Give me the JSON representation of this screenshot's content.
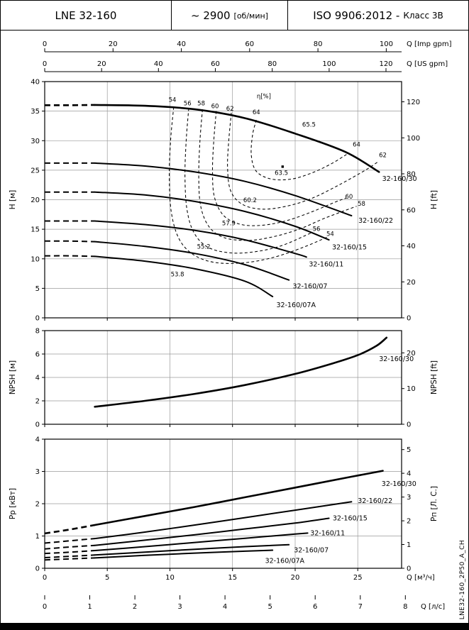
{
  "header": {
    "model": "LNE 32-160",
    "speed": "~ 2900",
    "speed_unit": "[об/мин]",
    "standard": "ISO 9906:2012 -",
    "standard_class": "Класс 3В"
  },
  "side_label": "LNE32-160_2P50_A_CH",
  "colors": {
    "curve": "#000000",
    "grid": "#9a9a9a",
    "background": "#ffffff"
  },
  "x_axis": {
    "max_m3h": 28.5,
    "top1_label": "Q [Imp gpm]",
    "top1_ticks": [
      0,
      20,
      40,
      60,
      80,
      100
    ],
    "top2_label": "Q [US gpm]",
    "top2_ticks": [
      0,
      20,
      40,
      60,
      80,
      100,
      120
    ],
    "bottom1_label": "Q [м³/ч]",
    "bottom1_ticks": [
      0,
      5,
      10,
      15,
      20,
      25
    ],
    "bottom2_label": "Q [л/с]",
    "bottom2_ticks": [
      0,
      1,
      2,
      3,
      4,
      5,
      6,
      7,
      8
    ]
  },
  "chart_data": [
    {
      "name": "head",
      "type": "line",
      "ylabel_left": "H [м]",
      "ylabel_right": "H [ft]",
      "ylim": [
        0,
        40
      ],
      "yticks_left": [
        0,
        5,
        10,
        15,
        20,
        25,
        30,
        35,
        40
      ],
      "yticks_right": [
        0,
        20,
        40,
        60,
        80,
        100,
        120
      ],
      "series": [
        {
          "label": "32-160/30",
          "dashed_points": [
            [
              0,
              36
            ],
            [
              2,
              36
            ],
            [
              4,
              36.05
            ]
          ],
          "points": [
            [
              4,
              36.05
            ],
            [
              8,
              35.9
            ],
            [
              12,
              35.3
            ],
            [
              16,
              33.8
            ],
            [
              20,
              31.2
            ],
            [
              24,
              28.1
            ],
            [
              26.7,
              24.7
            ]
          ],
          "label_at": [
            26.95,
            23.2
          ]
        },
        {
          "label": "32-160/22",
          "dashed_points": [
            [
              0,
              26.2
            ],
            [
              2,
              26.2
            ],
            [
              4,
              26.2
            ]
          ],
          "points": [
            [
              4,
              26.2
            ],
            [
              8,
              25.7
            ],
            [
              12,
              24.7
            ],
            [
              16,
              23.1
            ],
            [
              20,
              20.7
            ],
            [
              24.5,
              17.3
            ]
          ],
          "label_at": [
            25.05,
            16.1
          ]
        },
        {
          "label": "32-160/15",
          "dashed_points": [
            [
              0,
              21.3
            ],
            [
              2,
              21.3
            ],
            [
              4,
              21.3
            ]
          ],
          "points": [
            [
              4,
              21.3
            ],
            [
              8,
              20.8
            ],
            [
              12,
              19.7
            ],
            [
              16,
              18.0
            ],
            [
              20,
              15.5
            ],
            [
              22.7,
              13.2
            ]
          ],
          "label_at": [
            22.95,
            11.6
          ]
        },
        {
          "label": "32-160/11",
          "dashed_points": [
            [
              0,
              16.4
            ],
            [
              2,
              16.4
            ],
            [
              4,
              16.4
            ]
          ],
          "points": [
            [
              4,
              16.4
            ],
            [
              8,
              15.8
            ],
            [
              12,
              14.8
            ],
            [
              16,
              13.2
            ],
            [
              20,
              10.9
            ],
            [
              20.9,
              10.3
            ]
          ],
          "label_at": [
            21.1,
            8.7
          ]
        },
        {
          "label": "32-160/07",
          "dashed_points": [
            [
              0,
              13.0
            ],
            [
              2,
              13.0
            ],
            [
              4,
              12.9
            ]
          ],
          "points": [
            [
              4,
              12.9
            ],
            [
              8,
              12.1
            ],
            [
              12,
              10.9
            ],
            [
              16,
              9.0
            ],
            [
              19.5,
              6.4
            ]
          ],
          "label_at": [
            19.8,
            5.0
          ]
        },
        {
          "label": "32-160/07A",
          "dashed_points": [
            [
              0,
              10.5
            ],
            [
              2,
              10.5
            ],
            [
              4,
              10.4
            ]
          ],
          "points": [
            [
              4,
              10.4
            ],
            [
              8,
              9.6
            ],
            [
              12,
              8.3
            ],
            [
              16,
              6.2
            ],
            [
              18.2,
              3.6
            ]
          ],
          "label_at": [
            18.5,
            1.8
          ]
        }
      ],
      "contours": [
        {
          "value": 54,
          "points": [
            [
              10.3,
              35.7
            ],
            [
              10.05,
              30
            ],
            [
              9.95,
              24
            ],
            [
              10.1,
              18
            ],
            [
              10.7,
              13.5
            ],
            [
              11.8,
              10.8
            ],
            [
              13.5,
              9.4
            ],
            [
              15.8,
              9.3
            ],
            [
              18.2,
              10.2
            ],
            [
              20.6,
              11.9
            ],
            [
              22.6,
              13.7
            ]
          ]
        },
        {
          "value": 56,
          "points": [
            [
              11.5,
              35.5
            ],
            [
              11.3,
              30
            ],
            [
              11.2,
              24
            ],
            [
              11.35,
              18.5
            ],
            [
              11.9,
              14.5
            ],
            [
              13.0,
              12.0
            ],
            [
              14.8,
              11.0
            ],
            [
              16.8,
              11.2
            ],
            [
              18.9,
              12.2
            ],
            [
              21.3,
              14.4
            ]
          ]
        },
        {
          "value": 58,
          "points": [
            [
              12.6,
              35.3
            ],
            [
              12.4,
              30
            ],
            [
              12.3,
              24
            ],
            [
              12.45,
              19
            ],
            [
              13.1,
              15.5
            ],
            [
              14.3,
              13.6
            ],
            [
              16.2,
              13.1
            ],
            [
              18.2,
              13.7
            ],
            [
              20.3,
              15.0
            ],
            [
              22.4,
              16.9
            ],
            [
              24.9,
              18.9
            ]
          ]
        },
        {
          "value": 60,
          "points": [
            [
              13.7,
              35.0
            ],
            [
              13.5,
              30
            ],
            [
              13.4,
              25
            ],
            [
              13.55,
              20.5
            ],
            [
              14.3,
              17.3
            ],
            [
              15.7,
              15.8
            ],
            [
              17.5,
              15.7
            ],
            [
              19.4,
              16.5
            ],
            [
              21.4,
              18.0
            ],
            [
              23.2,
              19.6
            ],
            [
              24.1,
              20.3
            ]
          ]
        },
        {
          "value": 62,
          "points": [
            [
              14.9,
              34.7
            ],
            [
              14.7,
              30
            ],
            [
              14.6,
              25.5
            ],
            [
              14.85,
              21.5
            ],
            [
              15.8,
              19.2
            ],
            [
              17.4,
              18.4
            ],
            [
              19.3,
              18.9
            ],
            [
              21.3,
              20.2
            ],
            [
              23.5,
              22.5
            ],
            [
              25.6,
              25.0
            ],
            [
              26.6,
              26.4
            ]
          ]
        },
        {
          "value": 64,
          "points": [
            [
              16.9,
              33.5
            ],
            [
              16.6,
              31
            ],
            [
              16.5,
              27.5
            ],
            [
              16.9,
              24.8
            ],
            [
              18.1,
              23.5
            ],
            [
              19.7,
              23.5
            ],
            [
              21.3,
              24.5
            ],
            [
              22.9,
              26.1
            ],
            [
              24.2,
              27.8
            ]
          ]
        }
      ],
      "labels": [
        {
          "text": "η[%]",
          "q": 17.5,
          "h": 37.2
        },
        {
          "text": "54",
          "q": 10.2,
          "h": 36.6
        },
        {
          "text": "56",
          "q": 11.4,
          "h": 36.0
        },
        {
          "text": "58",
          "q": 12.5,
          "h": 36.0
        },
        {
          "text": "60",
          "q": 13.6,
          "h": 35.5
        },
        {
          "text": "62",
          "q": 14.8,
          "h": 35.1
        },
        {
          "text": "64",
          "q": 16.9,
          "h": 34.5
        },
        {
          "text": "65.5",
          "q": 21.1,
          "h": 32.4
        },
        {
          "text": "64",
          "q": 24.9,
          "h": 29.0
        },
        {
          "text": "62",
          "q": 27.0,
          "h": 27.2
        },
        {
          "text": "63.5",
          "q": 18.9,
          "h": 24.2
        },
        {
          "text": "60.2",
          "q": 16.4,
          "h": 19.6
        },
        {
          "text": "60",
          "q": 24.3,
          "h": 20.2
        },
        {
          "text": "58",
          "q": 25.3,
          "h": 19.0
        },
        {
          "text": "57.9",
          "q": 14.7,
          "h": 15.7
        },
        {
          "text": "56",
          "q": 21.7,
          "h": 14.7
        },
        {
          "text": "54",
          "q": 22.8,
          "h": 13.9
        },
        {
          "text": "55.2",
          "q": 12.7,
          "h": 11.7
        },
        {
          "text": "53.8",
          "q": 10.6,
          "h": 7.0
        }
      ],
      "markers": [
        {
          "q": 19.0,
          "h": 25.6
        }
      ]
    },
    {
      "name": "npsh",
      "type": "line",
      "ylabel_left": "NPSH [м]",
      "ylabel_right": "NPSH [ft]",
      "ylim": [
        0,
        8
      ],
      "yticks_left": [
        0,
        2,
        4,
        6,
        8
      ],
      "yticks_right": [
        0,
        10,
        20
      ],
      "series": [
        {
          "label": "32-160/30",
          "points": [
            [
              4,
              1.5
            ],
            [
              8,
              2.0
            ],
            [
              12,
              2.6
            ],
            [
              16,
              3.35
            ],
            [
              20,
              4.3
            ],
            [
              23,
              5.2
            ],
            [
              25,
              5.9
            ],
            [
              26.5,
              6.7
            ],
            [
              27.3,
              7.4
            ]
          ],
          "label_at": [
            26.7,
            5.4
          ]
        }
      ]
    },
    {
      "name": "power",
      "type": "line",
      "ylabel_left": "Pp [кВт]",
      "ylabel_right": "Pп [Л. С.]",
      "ylim": [
        0,
        4
      ],
      "yticks_left": [
        0,
        1,
        2,
        3,
        4
      ],
      "yticks_right": [
        0,
        1,
        2,
        3,
        4,
        5
      ],
      "series": [
        {
          "label": "32-160/30",
          "dashed_points": [
            [
              0,
              1.08
            ],
            [
              2,
              1.2
            ],
            [
              4,
              1.34
            ]
          ],
          "points": [
            [
              4,
              1.34
            ],
            [
              8,
              1.62
            ],
            [
              12,
              1.9
            ],
            [
              16,
              2.2
            ],
            [
              20,
              2.5
            ],
            [
              24,
              2.8
            ],
            [
              27,
              3.02
            ]
          ],
          "label_at": [
            26.9,
            2.55
          ]
        },
        {
          "label": "32-160/22",
          "dashed_points": [
            [
              0,
              0.78
            ],
            [
              2,
              0.85
            ],
            [
              4,
              0.92
            ]
          ],
          "points": [
            [
              4,
              0.92
            ],
            [
              8,
              1.12
            ],
            [
              12,
              1.34
            ],
            [
              16,
              1.57
            ],
            [
              20,
              1.8
            ],
            [
              24.5,
              2.06
            ]
          ],
          "label_at": [
            25.0,
            2.02
          ]
        },
        {
          "label": "32-160/15",
          "dashed_points": [
            [
              0,
              0.6
            ],
            [
              2,
              0.66
            ],
            [
              4,
              0.71
            ]
          ],
          "points": [
            [
              4,
              0.71
            ],
            [
              8,
              0.87
            ],
            [
              12,
              1.04
            ],
            [
              16,
              1.22
            ],
            [
              20,
              1.4
            ],
            [
              22.7,
              1.55
            ]
          ],
          "label_at": [
            23.0,
            1.48
          ]
        },
        {
          "label": "32-160/11",
          "dashed_points": [
            [
              0,
              0.46
            ],
            [
              2,
              0.5
            ],
            [
              4,
              0.55
            ]
          ],
          "points": [
            [
              4,
              0.55
            ],
            [
              8,
              0.67
            ],
            [
              12,
              0.8
            ],
            [
              16,
              0.93
            ],
            [
              20,
              1.06
            ],
            [
              21,
              1.09
            ]
          ],
          "label_at": [
            21.2,
            1.02
          ]
        },
        {
          "label": "32-160/07",
          "dashed_points": [
            [
              0,
              0.33
            ],
            [
              2,
              0.37
            ],
            [
              4,
              0.41
            ]
          ],
          "points": [
            [
              4,
              0.41
            ],
            [
              8,
              0.5
            ],
            [
              12,
              0.59
            ],
            [
              16,
              0.67
            ],
            [
              19.5,
              0.73
            ]
          ],
          "label_at": [
            19.9,
            0.5
          ]
        },
        {
          "label": "32-160/07A",
          "dashed_points": [
            [
              0,
              0.26
            ],
            [
              2,
              0.29
            ],
            [
              4,
              0.32
            ]
          ],
          "points": [
            [
              4,
              0.32
            ],
            [
              8,
              0.4
            ],
            [
              12,
              0.47
            ],
            [
              16,
              0.53
            ],
            [
              18.2,
              0.56
            ]
          ],
          "label_at": [
            17.6,
            0.17
          ]
        }
      ]
    }
  ]
}
